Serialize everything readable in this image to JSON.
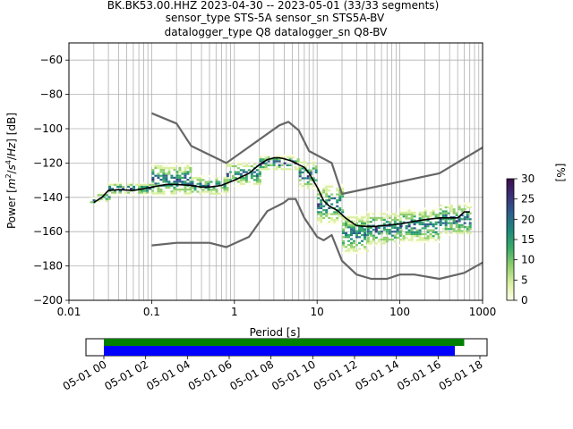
{
  "chart_data": {
    "type": "line",
    "title_lines": [
      "BK.BK53.00.HHZ   2023-04-30 -- 2023-05-01  (33/33 segments)",
      "sensor_type STS-5A sensor_sn STS5A-BV",
      "datalogger_type Q8 datalogger_sn Q8-BV"
    ],
    "xlabel": "Period [s]",
    "ylabel_parts": [
      "Power [",
      "m",
      "2",
      "/",
      "s",
      "4",
      "/",
      "Hz",
      "] [dB]"
    ],
    "xscale": "log",
    "xlim": [
      0.01,
      1000
    ],
    "ylim": [
      -200,
      -50
    ],
    "x_ticks": [
      {
        "value": 0.01,
        "label": "0.01"
      },
      {
        "value": 0.1,
        "label": "0.1"
      },
      {
        "value": 1,
        "label": "1"
      },
      {
        "value": 10,
        "label": "10"
      },
      {
        "value": 100,
        "label": "100"
      },
      {
        "value": 1000,
        "label": "1000"
      }
    ],
    "y_ticks": [
      {
        "value": -60,
        "label": "−60"
      },
      {
        "value": -80,
        "label": "−80"
      },
      {
        "value": -100,
        "label": "−100"
      },
      {
        "value": -120,
        "label": "−120"
      },
      {
        "value": -140,
        "label": "−140"
      },
      {
        "value": -160,
        "label": "−160"
      },
      {
        "value": -180,
        "label": "−180"
      },
      {
        "value": -200,
        "label": "−200"
      }
    ],
    "grid": true,
    "series": [
      {
        "color": "#666666",
        "points": [
          [
            0.1,
            -91
          ],
          [
            0.2,
            -97
          ],
          [
            0.3,
            -110
          ],
          [
            0.8,
            -120
          ],
          [
            3.5,
            -98
          ],
          [
            4.5,
            -96
          ],
          [
            6,
            -101
          ],
          [
            8,
            -113
          ],
          [
            15,
            -120
          ],
          [
            20,
            -138
          ],
          [
            300,
            -126
          ],
          [
            1000,
            -111
          ]
        ]
      },
      {
        "color": "#666666",
        "points": [
          [
            0.1,
            -168
          ],
          [
            0.2,
            -166.5
          ],
          [
            0.5,
            -166.5
          ],
          [
            0.8,
            -169
          ],
          [
            1.5,
            -163
          ],
          [
            2.5,
            -148
          ],
          [
            4,
            -143
          ],
          [
            4.5,
            -141
          ],
          [
            5.5,
            -141
          ],
          [
            7,
            -152
          ],
          [
            10,
            -163
          ],
          [
            12,
            -165
          ],
          [
            15,
            -162
          ],
          [
            20,
            -177
          ],
          [
            30,
            -185
          ],
          [
            45,
            -187.5
          ],
          [
            70,
            -187.5
          ],
          [
            100,
            -185
          ],
          [
            150,
            -185
          ],
          [
            300,
            -187.5
          ],
          [
            600,
            -184
          ],
          [
            1000,
            -178
          ]
        ]
      },
      {
        "color": "#000000",
        "points": [
          [
            0.02,
            -143
          ],
          [
            0.025,
            -140
          ],
          [
            0.03,
            -136
          ],
          [
            0.04,
            -135.5
          ],
          [
            0.06,
            -136
          ],
          [
            0.08,
            -135
          ],
          [
            0.1,
            -134
          ],
          [
            0.15,
            -132.5
          ],
          [
            0.2,
            -132.5
          ],
          [
            0.3,
            -133
          ],
          [
            0.4,
            -134
          ],
          [
            0.5,
            -134
          ],
          [
            0.7,
            -133
          ],
          [
            1,
            -130
          ],
          [
            1.5,
            -126
          ],
          [
            2,
            -121
          ],
          [
            2.5,
            -118
          ],
          [
            3,
            -117
          ],
          [
            3.5,
            -117
          ],
          [
            4,
            -117.5
          ],
          [
            5,
            -119
          ],
          [
            6,
            -121
          ],
          [
            7,
            -122.5
          ],
          [
            8,
            -126
          ],
          [
            10,
            -134
          ],
          [
            12,
            -142
          ],
          [
            14,
            -145
          ],
          [
            18,
            -148
          ],
          [
            22,
            -152
          ],
          [
            30,
            -156.5
          ],
          [
            40,
            -157
          ],
          [
            50,
            -157
          ],
          [
            60,
            -156.5
          ],
          [
            80,
            -156
          ],
          [
            100,
            -155.5
          ],
          [
            150,
            -154
          ],
          [
            200,
            -153
          ],
          [
            300,
            -152
          ],
          [
            500,
            -152
          ],
          [
            600,
            -148.5
          ],
          [
            700,
            -148.5
          ]
        ]
      }
    ],
    "density": [
      {
        "x": [
          0.018,
          0.022
        ],
        "y": [
          -140,
          -143
        ]
      },
      {
        "x": [
          0.022,
          0.03
        ],
        "y": [
          -137,
          -142
        ]
      },
      {
        "x": [
          0.03,
          0.1
        ],
        "y": [
          -131,
          -138
        ]
      },
      {
        "x": [
          0.1,
          0.3
        ],
        "y": [
          -120,
          -139
        ]
      },
      {
        "x": [
          0.3,
          0.8
        ],
        "y": [
          -127,
          -138
        ]
      },
      {
        "x": [
          0.8,
          2
        ],
        "y": [
          -119,
          -133
        ]
      },
      {
        "x": [
          2,
          6
        ],
        "y": [
          -115,
          -124
        ]
      },
      {
        "x": [
          6,
          10
        ],
        "y": [
          -118,
          -135
        ]
      },
      {
        "x": [
          10,
          20
        ],
        "y": [
          -132,
          -155
        ]
      },
      {
        "x": [
          20,
          40
        ],
        "y": [
          -150,
          -172
        ]
      },
      {
        "x": [
          40,
          100
        ],
        "y": [
          -148,
          -168
        ]
      },
      {
        "x": [
          100,
          300
        ],
        "y": [
          -146,
          -166
        ]
      },
      {
        "x": [
          300,
          700
        ],
        "y": [
          -143,
          -162
        ]
      }
    ],
    "colorbar": {
      "label": "[%]",
      "range": [
        0,
        30
      ],
      "ticks": [
        {
          "value": 0,
          "label": "0"
        },
        {
          "value": 5,
          "label": "5"
        },
        {
          "value": 10,
          "label": "10"
        },
        {
          "value": 15,
          "label": "15"
        },
        {
          "value": 20,
          "label": "20"
        },
        {
          "value": 25,
          "label": "25"
        },
        {
          "value": 30,
          "label": "30"
        }
      ],
      "stops": [
        "#fefee6",
        "#d9efa0",
        "#8fce6e",
        "#3aab68",
        "#1f8a7a",
        "#2d5e8c",
        "#3b3178",
        "#3d0d4e"
      ]
    },
    "timeline": {
      "green_color": "#008000",
      "blue_color": "#0000ff",
      "green_hours": [
        0,
        17.25
      ],
      "blue_hours": [
        0,
        16.8
      ],
      "ticks": [
        {
          "hour": 0,
          "label": "05-01 00"
        },
        {
          "hour": 2,
          "label": "05-01 02"
        },
        {
          "hour": 4,
          "label": "05-01 04"
        },
        {
          "hour": 6,
          "label": "05-01 06"
        },
        {
          "hour": 8,
          "label": "05-01 08"
        },
        {
          "hour": 10,
          "label": "05-01 10"
        },
        {
          "hour": 12,
          "label": "05-01 12"
        },
        {
          "hour": 14,
          "label": "05-01 14"
        },
        {
          "hour": 16,
          "label": "05-01 16"
        },
        {
          "hour": 18,
          "label": "05-01 18"
        }
      ]
    }
  }
}
